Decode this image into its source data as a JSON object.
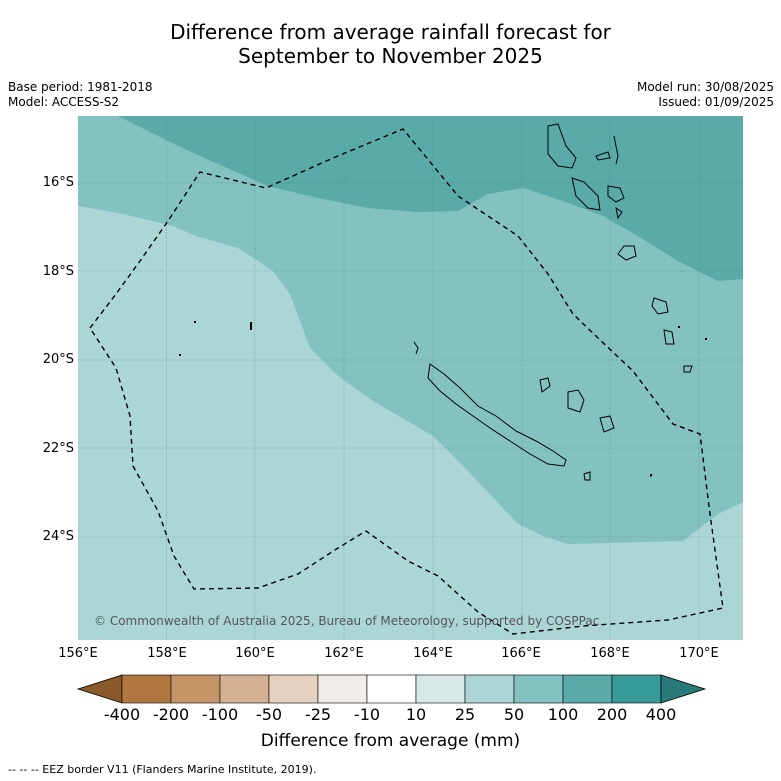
{
  "title_line1": "Difference from average rainfall forecast for",
  "title_line2": "September to November 2025",
  "base_period": "Base period: 1981-2018",
  "model": "Model: ACCESS-S2",
  "model_run": "Model run: 30/08/2025",
  "issued": "Issued: 01/09/2025",
  "lat_labels": [
    "16°S",
    "18°S",
    "20°S",
    "22°S",
    "24°S"
  ],
  "lon_labels": [
    "156°E",
    "158°E",
    "160°E",
    "162°E",
    "164°E",
    "166°E",
    "168°E",
    "170°E"
  ],
  "copyright": "© Commonwealth of Australia 2025, Bureau of Meteorology, supported by COSPPac",
  "colorbar": {
    "title": "Difference from average (mm)",
    "labels": [
      "-400",
      "-200",
      "-100",
      "-50",
      "-25",
      "-10",
      "10",
      "25",
      "50",
      "100",
      "200",
      "400"
    ],
    "colors": [
      "#8b5a2b",
      "#b07840",
      "#c49468",
      "#d5b193",
      "#e6d1be",
      "#f0ece9",
      "#ffffff",
      "#d6e9e8",
      "#acd6d6",
      "#84c1c1",
      "#5aaaaa",
      "#369a98",
      "#287a78"
    ]
  },
  "zone_colors": {
    "light": "#acd6d6",
    "mid": "#84c1c1",
    "dark": "#5aaaaa"
  },
  "footer": "--  --  -- EEZ border V11 (Flanders Marine Institute, 2019)."
}
